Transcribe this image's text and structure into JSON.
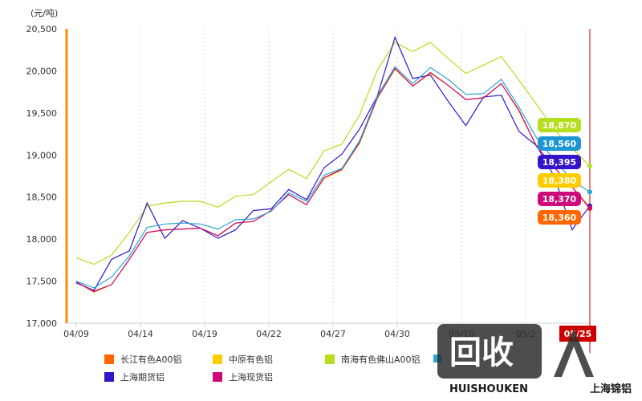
{
  "chart_data": {
    "type": "line",
    "unit": "(元/吨)",
    "ylim": [
      17000,
      20500
    ],
    "yticks": [
      17000,
      17500,
      18000,
      18500,
      19000,
      19500,
      20000,
      20500
    ],
    "ytick_labels": [
      "17,000",
      "17,500",
      "18,000",
      "18,500",
      "19,000",
      "19,500",
      "20,000",
      "20,500"
    ],
    "x_labels": [
      "04/09",
      "04/14",
      "04/19",
      "04/22",
      "04/27",
      "04/30",
      "05/10",
      "05/2",
      "05/25"
    ],
    "grid": true,
    "legend_position": "bottom",
    "series": [
      {
        "name": "长江有色A00铝",
        "color": "#ff6600",
        "values": [
          17490,
          17370,
          17460,
          17760,
          18080,
          18110,
          18120,
          18130,
          18040,
          18190,
          18210,
          18340,
          18530,
          18410,
          18730,
          18830,
          19150,
          19680,
          20030,
          19820,
          19980,
          19830,
          19660,
          19680,
          19850,
          19530,
          19100,
          18850,
          18620,
          18360
        ]
      },
      {
        "name": "中原有色铝",
        "color": "#ffcc00",
        "values": [
          17490,
          17380,
          17460,
          17760,
          18080,
          18110,
          18120,
          18130,
          18040,
          18190,
          18210,
          18340,
          18530,
          18410,
          18720,
          18820,
          19140,
          19670,
          20020,
          19820,
          19970,
          19830,
          19660,
          19680,
          19850,
          19520,
          19100,
          18850,
          18620,
          18380
        ]
      },
      {
        "name": "南海有色佛山A00铝",
        "color": "#b5de1d",
        "values": [
          17780,
          17700,
          17810,
          18080,
          18390,
          18430,
          18450,
          18450,
          18380,
          18510,
          18530,
          18680,
          18830,
          18720,
          19050,
          19130,
          19480,
          20010,
          20340,
          20230,
          20340,
          20150,
          19970,
          20070,
          20170,
          19890,
          19600,
          19300,
          19080,
          18870
        ]
      },
      {
        "name": "上海期货铝",
        "color": "#3414c8",
        "values": [
          17480,
          17390,
          17760,
          17860,
          18430,
          18010,
          18220,
          18130,
          18010,
          18110,
          18340,
          18360,
          18590,
          18470,
          18850,
          19010,
          19310,
          19700,
          20400,
          19910,
          19950,
          19640,
          19350,
          19690,
          19710,
          19280,
          19110,
          18740,
          18110,
          18395
        ]
      },
      {
        "name": "上海现货铝",
        "color": "#cc0a7a",
        "values": [
          17490,
          17380,
          17460,
          17760,
          18080,
          18110,
          18120,
          18130,
          18040,
          18190,
          18210,
          18340,
          18530,
          18410,
          18730,
          18830,
          19150,
          19680,
          20030,
          19820,
          19980,
          19830,
          19660,
          19680,
          19850,
          19530,
          19100,
          18850,
          18620,
          18370
        ]
      },
      {
        "name": "",
        "color": "#2aa6d6",
        "values": [
          17500,
          17420,
          17550,
          17800,
          18140,
          18180,
          18190,
          18180,
          18120,
          18230,
          18240,
          18330,
          18550,
          18450,
          18760,
          18840,
          19170,
          19700,
          20050,
          19850,
          20040,
          19900,
          19720,
          19730,
          19900,
          19570,
          19200,
          18940,
          18700,
          18560
        ]
      }
    ],
    "end_labels": [
      {
        "text": "18,870",
        "color": "#b5de1d"
      },
      {
        "text": "18,560",
        "color": "#1e96d2"
      },
      {
        "text": "18,395",
        "color": "#3414c8"
      },
      {
        "text": "18,380",
        "color": "#ffcc00"
      },
      {
        "text": "18,370",
        "color": "#cc0a7a"
      },
      {
        "text": "18,360",
        "color": "#ff6600"
      }
    ],
    "crosshair_label": "05/25"
  },
  "watermark": {
    "logo": "回收",
    "brand": "HUISHOUKEN",
    "caption": "上海锦铝"
  }
}
